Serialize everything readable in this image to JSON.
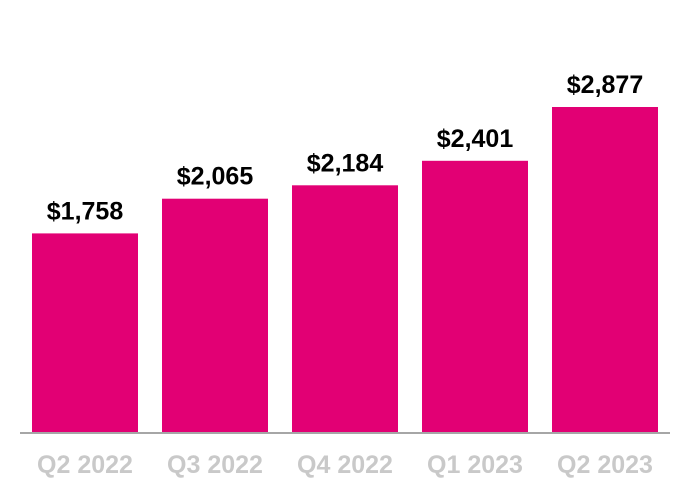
{
  "chart_data": {
    "type": "bar",
    "title": "",
    "xlabel": "",
    "ylabel": "",
    "categories": [
      "Q2 2022",
      "Q3 2022",
      "Q4 2022",
      "Q1 2023",
      "Q2 2023"
    ],
    "values": [
      1758,
      2065,
      2184,
      2401,
      2877
    ],
    "value_labels": [
      "$1,758",
      "$2,065",
      "$2,184",
      "$2,401",
      "$2,877"
    ],
    "ylim": [
      0,
      3000
    ],
    "grid": false,
    "legend": "none"
  },
  "colors": {
    "bar": "#e20074",
    "axis": "#a6a6a6",
    "value_text": "#000000",
    "tick_text": "#c9c9c9"
  }
}
